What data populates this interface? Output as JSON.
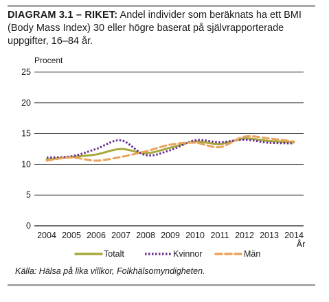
{
  "title_head": "DIAGRAM 3.1 – RIKET:",
  "title_rest": "Andel individer som beräknats ha ett BMI (Body Mass Index) 30 eller högre baserat på självrapporterade uppgifter, 16–84 år.",
  "source": "Källa: Hälsa på lika villkor, Folkhälsomyndigheten.",
  "colors": {
    "totalt": "#a6a83c",
    "kvinnor": "#6a2c8e",
    "man": "#eaa25c",
    "grid": "#1a1a1a",
    "frame": "#a9a9a9"
  },
  "chart_data": {
    "type": "line",
    "ylabel": "Procent",
    "xlabel": "År",
    "ylim": [
      0,
      25
    ],
    "yticks": [
      0,
      5,
      10,
      15,
      20,
      25
    ],
    "x": [
      2004,
      2005,
      2006,
      2007,
      2008,
      2009,
      2010,
      2011,
      2012,
      2013,
      2014
    ],
    "grid": true,
    "legend_position": "bottom",
    "series": [
      {
        "name": "Totalt",
        "style": "solid",
        "values": [
          10.8,
          11.2,
          11.6,
          12.5,
          11.8,
          12.7,
          13.7,
          13.3,
          14.2,
          13.8,
          13.6
        ]
      },
      {
        "name": "Kvinnor",
        "style": "dotted",
        "values": [
          11.1,
          11.3,
          12.5,
          13.9,
          11.5,
          12.3,
          13.9,
          13.6,
          14.0,
          13.5,
          13.4
        ]
      },
      {
        "name": "Män",
        "style": "dashed",
        "values": [
          10.6,
          11.1,
          10.6,
          11.2,
          12.1,
          13.2,
          13.5,
          12.8,
          14.5,
          14.2,
          13.7
        ]
      }
    ]
  }
}
